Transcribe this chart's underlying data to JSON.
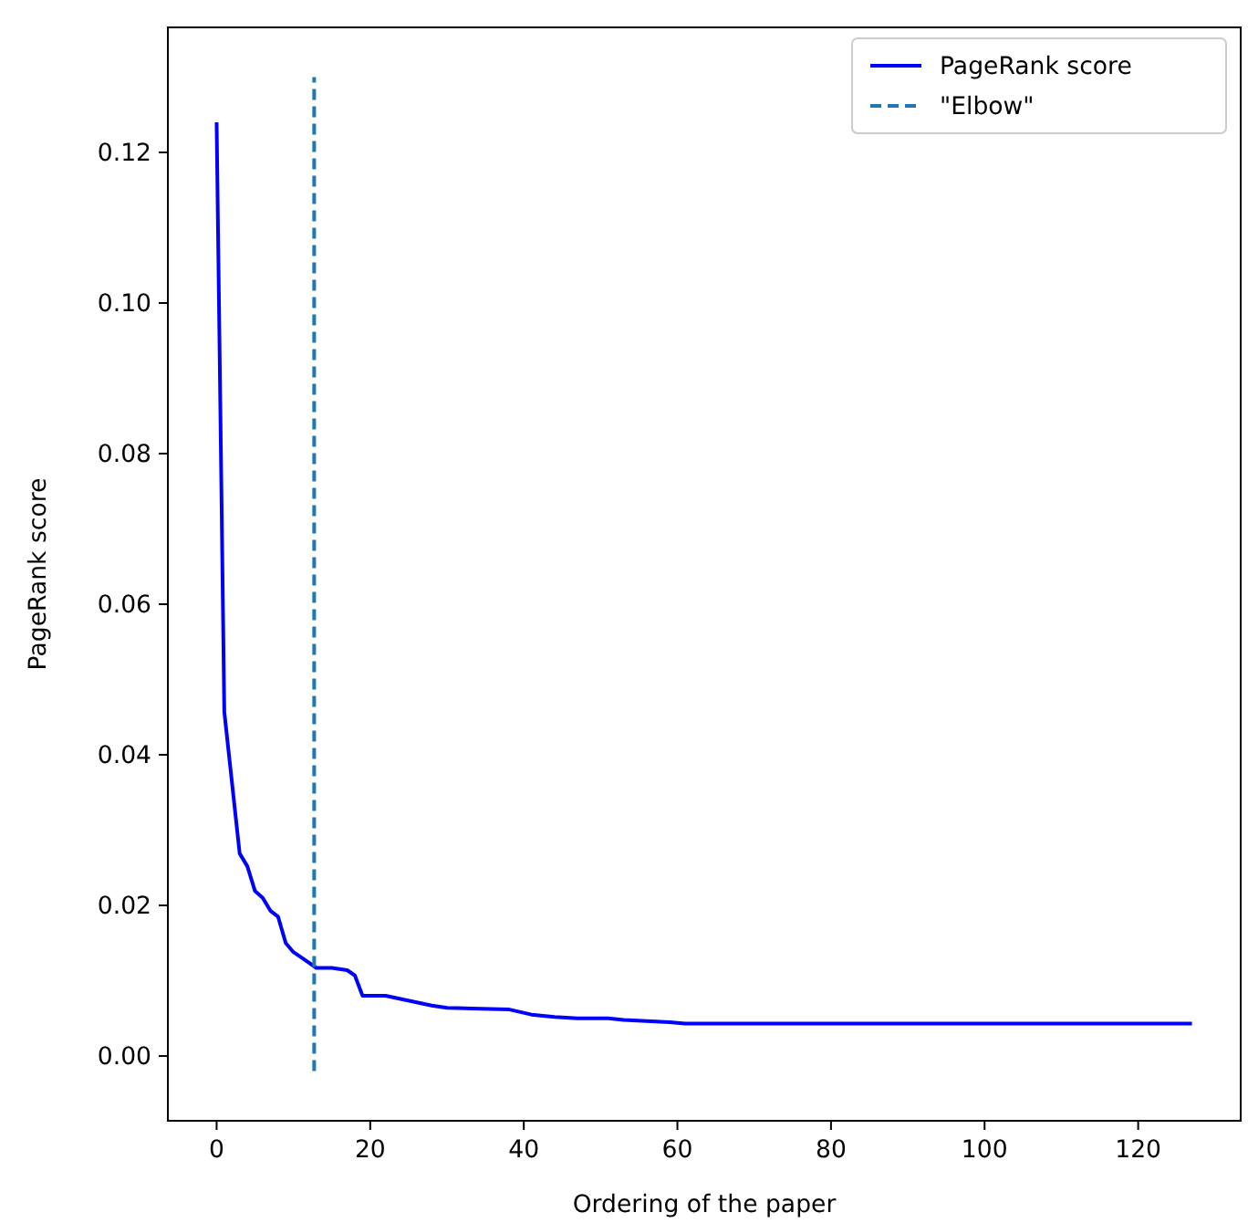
{
  "chart_data": {
    "type": "line",
    "xlabel": "Ordering of the paper",
    "ylabel": "PageRank score",
    "xlim": [
      -6.35,
      133.35
    ],
    "xticks": [
      0,
      20,
      40,
      60,
      80,
      100,
      120
    ],
    "ylim": [
      -0.0086,
      0.1366
    ],
    "yticks": [
      {
        "value": 0,
        "label": "0.00"
      },
      {
        "value": 0.02,
        "label": "0.02"
      },
      {
        "value": 0.04,
        "label": "0.04"
      },
      {
        "value": 0.06,
        "label": "0.06"
      },
      {
        "value": 0.08,
        "label": "0.08"
      },
      {
        "value": 0.1,
        "label": "0.10"
      },
      {
        "value": 0.12,
        "label": "0.12"
      }
    ],
    "legend": "top right",
    "grid": false,
    "series": [
      {
        "name": "PageRank score",
        "color": "#0000ff",
        "line_style": "solid",
        "x": [
          0,
          1,
          3,
          4,
          5,
          6,
          7,
          8,
          9,
          10,
          11,
          13,
          15,
          17,
          18,
          19,
          22,
          28,
          30,
          38,
          41,
          44,
          47,
          51,
          53,
          59,
          61,
          127
        ],
        "values": [
          0.124,
          0.0457,
          0.0269,
          0.0252,
          0.0219,
          0.021,
          0.0193,
          0.0185,
          0.015,
          0.0138,
          0.0131,
          0.0117,
          0.0117,
          0.0114,
          0.0107,
          0.008,
          0.008,
          0.0067,
          0.0064,
          0.0062,
          0.0055,
          0.0052,
          0.005,
          0.005,
          0.0048,
          0.0045,
          0.0043,
          0.0043
        ]
      },
      {
        "name": "\"Elbow\"",
        "color": "#1f77b4",
        "line_style": "dashed",
        "x": [
          12.7,
          12.7
        ],
        "values": [
          -0.002,
          0.13
        ]
      }
    ]
  }
}
